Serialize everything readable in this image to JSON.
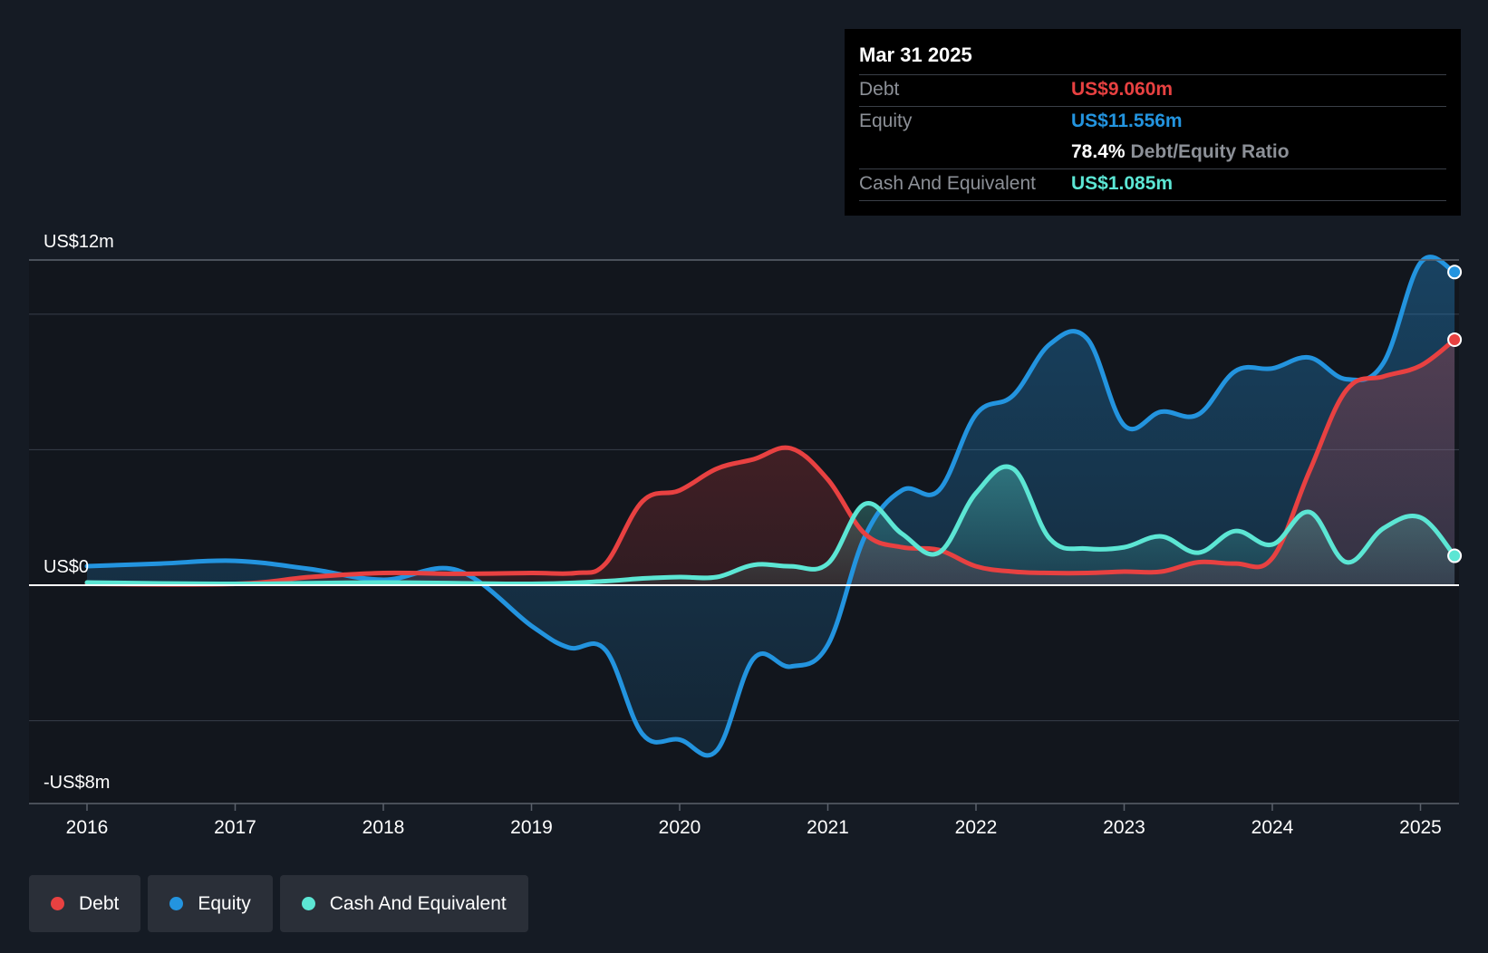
{
  "tooltip": {
    "date": "Mar 31 2025",
    "debt_label": "Debt",
    "debt_value": "US$9.060m",
    "equity_label": "Equity",
    "equity_value": "US$11.556m",
    "ratio_value": "78.4%",
    "ratio_label": "Debt/Equity Ratio",
    "cash_label": "Cash And Equivalent",
    "cash_value": "US$1.085m"
  },
  "legend": [
    {
      "label": "Debt",
      "color": "#e84141"
    },
    {
      "label": "Equity",
      "color": "#2394df"
    },
    {
      "label": "Cash And Equivalent",
      "color": "#5ce6d4"
    }
  ],
  "chart_data": {
    "type": "area",
    "title": "",
    "xlabel": "",
    "ylabel": "",
    "ylim": [
      -8,
      12
    ],
    "xlim": [
      2015.62,
      2025.27
    ],
    "y_tick_labels": [
      {
        "value": 12,
        "label": "US$12m"
      },
      {
        "value": 0,
        "label": "US$0"
      },
      {
        "value": -8,
        "label": "-US$8m"
      }
    ],
    "gridlines": [
      12,
      10,
      5,
      0,
      -5
    ],
    "x_ticks": [
      2016,
      2017,
      2018,
      2019,
      2020,
      2021,
      2022,
      2023,
      2024,
      2025
    ],
    "series": [
      {
        "name": "Debt",
        "color": "#e84141",
        "points": [
          [
            2016.0,
            0.05
          ],
          [
            2017.0,
            0.05
          ],
          [
            2017.5,
            0.3
          ],
          [
            2018.0,
            0.45
          ],
          [
            2018.5,
            0.42
          ],
          [
            2019.0,
            0.45
          ],
          [
            2019.3,
            0.45
          ],
          [
            2019.5,
            0.8
          ],
          [
            2019.75,
            3.1
          ],
          [
            2020.0,
            3.5
          ],
          [
            2020.25,
            4.3
          ],
          [
            2020.5,
            4.65
          ],
          [
            2020.75,
            5.05
          ],
          [
            2021.0,
            3.9
          ],
          [
            2021.25,
            1.9
          ],
          [
            2021.5,
            1.4
          ],
          [
            2021.75,
            1.3
          ],
          [
            2022.0,
            0.7
          ],
          [
            2022.25,
            0.5
          ],
          [
            2022.5,
            0.45
          ],
          [
            2022.75,
            0.45
          ],
          [
            2023.0,
            0.5
          ],
          [
            2023.25,
            0.5
          ],
          [
            2023.5,
            0.85
          ],
          [
            2023.75,
            0.8
          ],
          [
            2024.0,
            1.0
          ],
          [
            2024.25,
            4.2
          ],
          [
            2024.5,
            7.2
          ],
          [
            2024.75,
            7.7
          ],
          [
            2025.0,
            8.1
          ],
          [
            2025.23,
            9.06
          ]
        ]
      },
      {
        "name": "Equity",
        "color": "#2394df",
        "points": [
          [
            2016.0,
            0.7
          ],
          [
            2016.5,
            0.8
          ],
          [
            2017.0,
            0.9
          ],
          [
            2017.5,
            0.6
          ],
          [
            2018.0,
            0.2
          ],
          [
            2018.5,
            0.55
          ],
          [
            2019.0,
            -1.5
          ],
          [
            2019.25,
            -2.3
          ],
          [
            2019.5,
            -2.4
          ],
          [
            2019.75,
            -5.5
          ],
          [
            2020.0,
            -5.7
          ],
          [
            2020.25,
            -6.1
          ],
          [
            2020.5,
            -2.7
          ],
          [
            2020.75,
            -3.0
          ],
          [
            2021.0,
            -2.2
          ],
          [
            2021.25,
            1.8
          ],
          [
            2021.5,
            3.5
          ],
          [
            2021.75,
            3.5
          ],
          [
            2022.0,
            6.3
          ],
          [
            2022.25,
            7.0
          ],
          [
            2022.5,
            8.9
          ],
          [
            2022.75,
            9.1
          ],
          [
            2023.0,
            5.9
          ],
          [
            2023.25,
            6.4
          ],
          [
            2023.5,
            6.3
          ],
          [
            2023.75,
            7.9
          ],
          [
            2024.0,
            8.0
          ],
          [
            2024.25,
            8.4
          ],
          [
            2024.5,
            7.6
          ],
          [
            2024.75,
            8.2
          ],
          [
            2025.0,
            11.9
          ],
          [
            2025.23,
            11.556
          ]
        ]
      },
      {
        "name": "Cash And Equivalent",
        "color": "#5ce6d4",
        "points": [
          [
            2016.0,
            0.1
          ],
          [
            2017.0,
            0.05
          ],
          [
            2018.0,
            0.1
          ],
          [
            2019.0,
            0.05
          ],
          [
            2019.5,
            0.15
          ],
          [
            2019.75,
            0.25
          ],
          [
            2020.0,
            0.3
          ],
          [
            2020.25,
            0.3
          ],
          [
            2020.5,
            0.75
          ],
          [
            2020.75,
            0.7
          ],
          [
            2021.0,
            0.8
          ],
          [
            2021.25,
            3.0
          ],
          [
            2021.5,
            1.9
          ],
          [
            2021.75,
            1.2
          ],
          [
            2022.0,
            3.4
          ],
          [
            2022.25,
            4.3
          ],
          [
            2022.5,
            1.7
          ],
          [
            2022.75,
            1.35
          ],
          [
            2023.0,
            1.4
          ],
          [
            2023.25,
            1.8
          ],
          [
            2023.5,
            1.2
          ],
          [
            2023.75,
            2.0
          ],
          [
            2024.0,
            1.5
          ],
          [
            2024.25,
            2.7
          ],
          [
            2024.5,
            0.85
          ],
          [
            2024.75,
            2.1
          ],
          [
            2025.0,
            2.5
          ],
          [
            2025.23,
            1.085
          ]
        ]
      }
    ]
  }
}
